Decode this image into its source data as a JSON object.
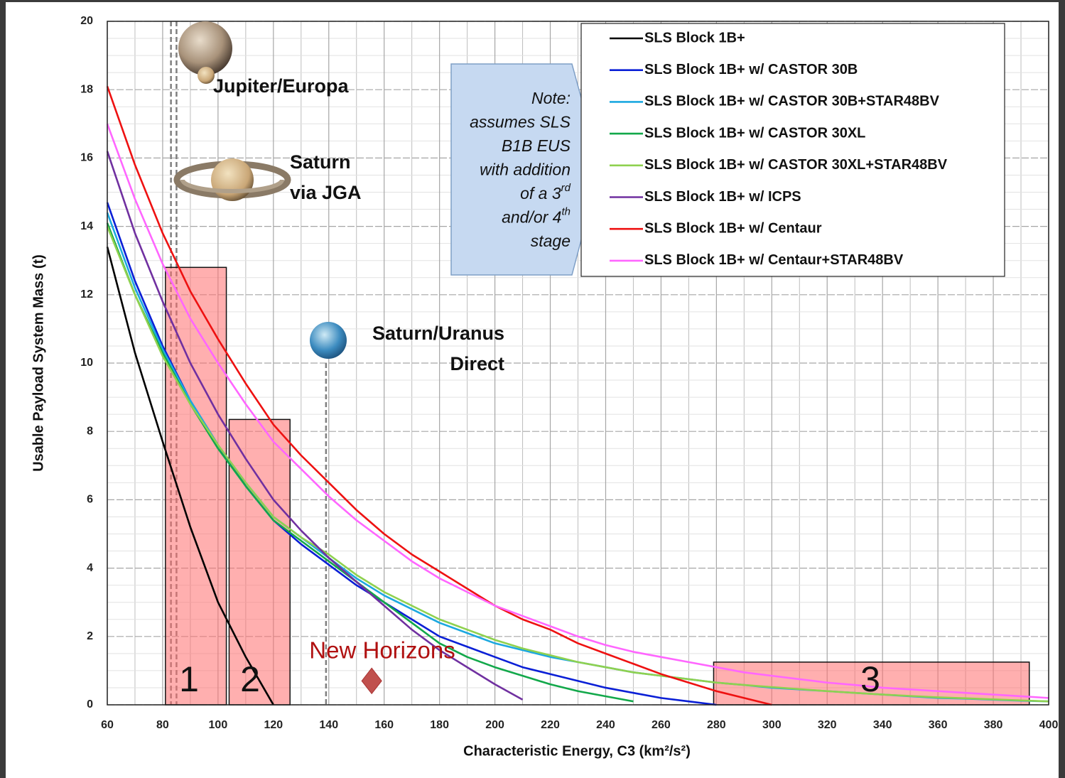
{
  "chart_data": {
    "type": "line",
    "x_label": "Characteristic Energy, C3 (km²/s²)",
    "y_label": "Usable Payload System Mass (t)",
    "xlim": [
      60,
      400
    ],
    "ylim": [
      0,
      20
    ],
    "xticks": [
      60,
      80,
      100,
      120,
      140,
      160,
      180,
      200,
      220,
      240,
      260,
      280,
      300,
      320,
      340,
      360,
      380,
      400
    ],
    "yticks": [
      0,
      2,
      4,
      6,
      8,
      10,
      12,
      14,
      16,
      18,
      20
    ],
    "grid": true,
    "legend": "upper right",
    "x": [
      60,
      70,
      80,
      90,
      100,
      110,
      120,
      130,
      140,
      150,
      160,
      170,
      180,
      190,
      200,
      210,
      220,
      230,
      240,
      250,
      260,
      270,
      280,
      290,
      300,
      310,
      320,
      330,
      340,
      350,
      360,
      370,
      380,
      390,
      400
    ],
    "series": [
      {
        "name": "SLS Block 1B+",
        "color": "#000000",
        "values": [
          13.4,
          10.3,
          7.7,
          5.2,
          3.0,
          1.4,
          0.0,
          null,
          null,
          null,
          null,
          null,
          null,
          null,
          null,
          null,
          null,
          null,
          null,
          null,
          null,
          null,
          null,
          null,
          null,
          null,
          null,
          null,
          null,
          null,
          null,
          null,
          null,
          null,
          null
        ]
      },
      {
        "name": "SLS Block 1B+ w/ CASTOR 30B",
        "color": "#0a1fd6",
        "values": [
          14.7,
          12.4,
          10.5,
          8.9,
          7.6,
          6.4,
          5.4,
          4.7,
          4.1,
          3.5,
          3.0,
          2.5,
          2.0,
          1.7,
          1.4,
          1.1,
          0.9,
          0.7,
          0.5,
          0.35,
          0.2,
          0.1,
          0.0,
          null,
          null,
          null,
          null,
          null,
          null,
          null,
          null,
          null,
          null,
          null,
          null
        ]
      },
      {
        "name": "SLS Block 1B+ w/ CASTOR 30B+STAR48BV",
        "color": "#1ca8e0",
        "values": [
          14.4,
          12.2,
          10.4,
          8.9,
          7.6,
          6.5,
          5.5,
          4.9,
          4.3,
          3.7,
          3.2,
          2.8,
          2.4,
          2.1,
          1.8,
          1.6,
          1.4,
          1.25,
          1.1,
          0.95,
          0.85,
          0.75,
          0.65,
          0.58,
          0.5,
          0.45,
          0.4,
          0.35,
          0.3,
          0.25,
          0.2,
          0.18,
          0.15,
          0.12,
          0.1
        ]
      },
      {
        "name": "SLS Block 1B+ w/ CASTOR 30XL",
        "color": "#12a84a",
        "values": [
          14.1,
          12.0,
          10.3,
          8.8,
          7.5,
          6.4,
          5.4,
          4.8,
          4.2,
          3.6,
          3.0,
          2.4,
          1.8,
          1.4,
          1.1,
          0.85,
          0.6,
          0.4,
          0.25,
          0.1,
          null,
          null,
          null,
          null,
          null,
          null,
          null,
          null,
          null,
          null,
          null,
          null,
          null,
          null,
          null
        ]
      },
      {
        "name": "SLS Block 1B+ w/ CASTOR 30XL+STAR48BV",
        "color": "#8fd14f",
        "values": [
          14.0,
          12.0,
          10.2,
          8.8,
          7.6,
          6.5,
          5.5,
          4.9,
          4.4,
          3.8,
          3.3,
          2.9,
          2.5,
          2.2,
          1.9,
          1.65,
          1.45,
          1.25,
          1.1,
          0.95,
          0.85,
          0.75,
          0.65,
          0.58,
          0.52,
          0.46,
          0.4,
          0.35,
          0.3,
          0.26,
          0.22,
          0.19,
          0.16,
          0.13,
          0.1
        ]
      },
      {
        "name": "SLS Block 1B+ w/ ICPS",
        "color": "#7030a0",
        "values": [
          16.2,
          13.8,
          11.8,
          10.0,
          8.5,
          7.2,
          6.0,
          5.1,
          4.3,
          3.6,
          2.9,
          2.2,
          1.6,
          1.1,
          0.6,
          0.15,
          null,
          null,
          null,
          null,
          null,
          null,
          null,
          null,
          null,
          null,
          null,
          null,
          null,
          null,
          null,
          null,
          null,
          null,
          null
        ]
      },
      {
        "name": "SLS Block 1B+ w/ Centaur",
        "color": "#ee1111",
        "values": [
          18.1,
          15.8,
          13.8,
          12.1,
          10.7,
          9.4,
          8.2,
          7.3,
          6.5,
          5.7,
          5.0,
          4.4,
          3.9,
          3.4,
          2.9,
          2.5,
          2.2,
          1.8,
          1.5,
          1.2,
          0.9,
          0.65,
          0.4,
          0.2,
          0.0,
          null,
          null,
          null,
          null,
          null,
          null,
          null,
          null,
          null,
          null
        ]
      },
      {
        "name": "SLS Block 1B+ w/ Centaur+STAR48BV",
        "color": "#ff66ff",
        "values": [
          17.0,
          14.8,
          12.9,
          11.3,
          10.0,
          8.8,
          7.7,
          6.9,
          6.1,
          5.4,
          4.8,
          4.2,
          3.7,
          3.3,
          2.9,
          2.6,
          2.3,
          2.0,
          1.75,
          1.55,
          1.4,
          1.25,
          1.1,
          0.95,
          0.85,
          0.75,
          0.65,
          0.58,
          0.5,
          0.45,
          0.4,
          0.35,
          0.3,
          0.25,
          0.2
        ]
      }
    ],
    "regions": [
      {
        "label": "1",
        "x": [
          81,
          103
        ],
        "y": 12.8
      },
      {
        "label": "2",
        "x": [
          104,
          126
        ],
        "y": 8.35
      },
      {
        "label": "3",
        "x": [
          279,
          393
        ],
        "y": 1.25
      }
    ],
    "reference_lines": [
      {
        "label": "Jupiter/Europa",
        "x": 83
      },
      {
        "label": [
          "Saturn",
          "via JGA"
        ],
        "x": 85
      },
      {
        "label": [
          "Saturn/Uranus",
          "Direct"
        ],
        "x": 139
      }
    ],
    "point": {
      "label": "New Horizons",
      "x": 155.5,
      "y": 0.7,
      "color": "#c0504d"
    },
    "note": [
      "Note:",
      "assumes SLS",
      "B1B EUS",
      "with addition",
      {
        "text": "of a  3",
        "sup": "rd"
      },
      {
        "text": "and/or 4",
        "sup": "th"
      },
      "stage"
    ]
  }
}
